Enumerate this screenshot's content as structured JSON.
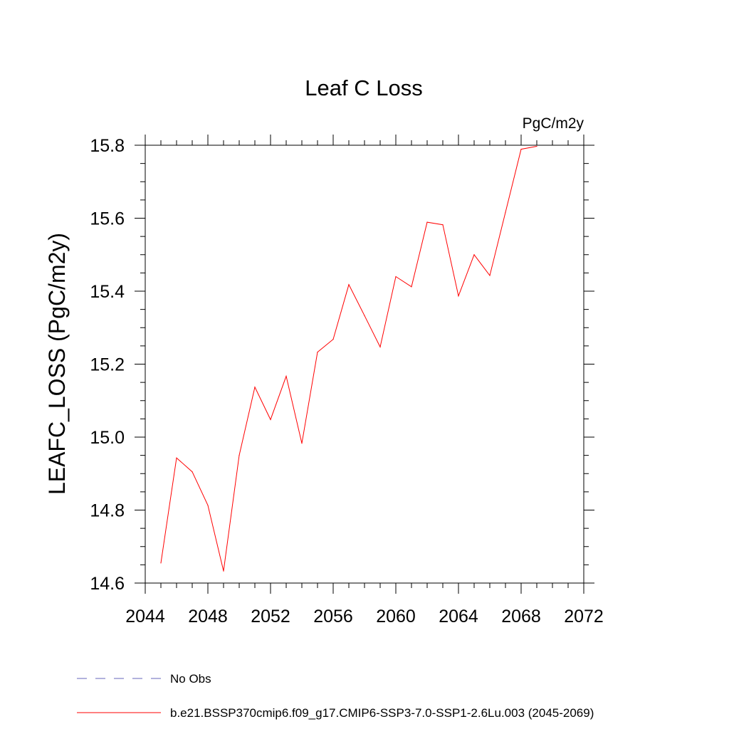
{
  "chart_data": {
    "type": "line",
    "title": "Leaf C Loss",
    "units_label": "PgC/m2y",
    "xlabel": "",
    "ylabel": "LEAFC_LOSS  (PgC/m2y)",
    "xlim": [
      2044,
      2072
    ],
    "ylim": [
      14.6,
      15.8
    ],
    "x_ticks": [
      "2044",
      "2048",
      "2052",
      "2056",
      "2060",
      "2064",
      "2068",
      "2072"
    ],
    "y_ticks": [
      "14.6",
      "14.8",
      "15.0",
      "15.2",
      "15.4",
      "15.6",
      "15.8"
    ],
    "grid": false,
    "legend_position": "bottom",
    "series": [
      {
        "name": "b.e21.BSSP370cmip6.f09_g17.CMIP6-SSP3-7.0-SSP1-2.6Lu.003 (2045-2069)",
        "color": "#ff0000",
        "style": "solid",
        "x": [
          2045,
          2046,
          2047,
          2048,
          2049,
          2050,
          2051,
          2052,
          2053,
          2054,
          2055,
          2056,
          2057,
          2058,
          2059,
          2060,
          2061,
          2062,
          2063,
          2064,
          2065,
          2066,
          2067,
          2068,
          2069
        ],
        "values": [
          14.655,
          14.943,
          14.905,
          14.813,
          14.633,
          14.95,
          15.137,
          15.048,
          15.167,
          14.983,
          15.233,
          15.268,
          15.418,
          15.333,
          15.247,
          15.44,
          15.412,
          15.589,
          15.582,
          15.387,
          15.5,
          15.443,
          15.616,
          15.789,
          15.797
        ]
      }
    ],
    "legend": [
      {
        "label": "No Obs",
        "color": "#6666bb",
        "style": "dashed"
      },
      {
        "label": "b.e21.BSSP370cmip6.f09_g17.CMIP6-SSP3-7.0-SSP1-2.6Lu.003 (2045-2069)",
        "color": "#ff0000",
        "style": "solid"
      }
    ]
  }
}
